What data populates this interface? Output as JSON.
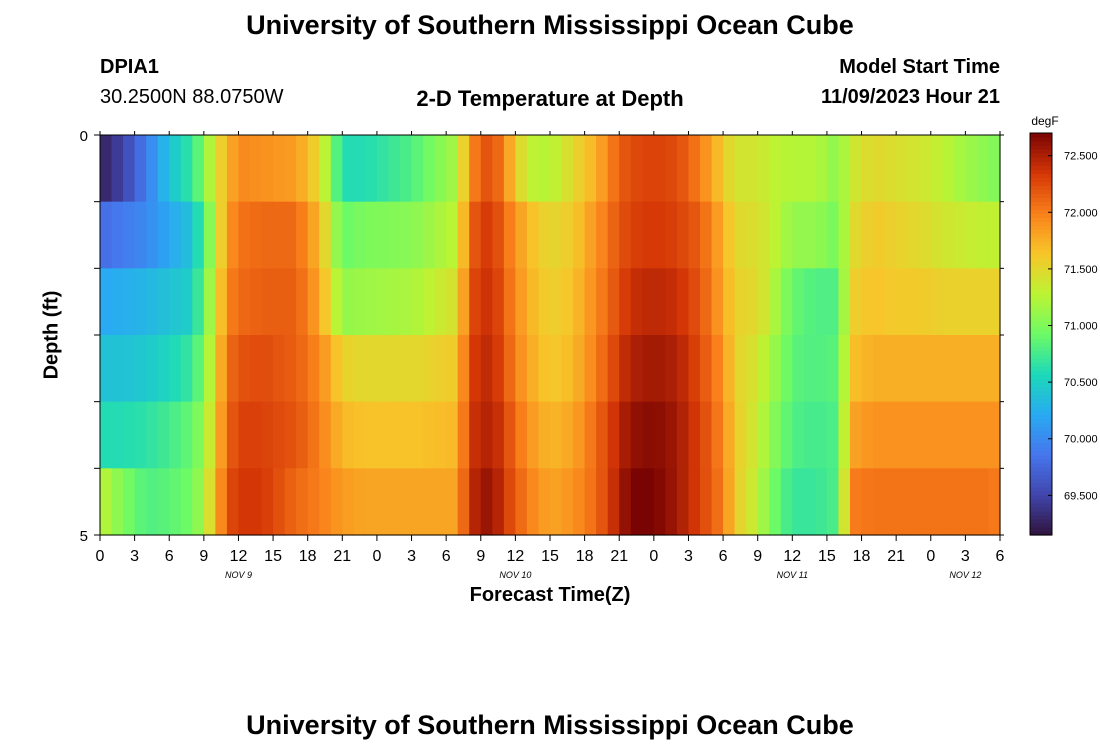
{
  "page": {
    "title": "University of Southern Mississippi Ocean Cube",
    "footer_title": "University of Southern Mississippi Ocean Cube"
  },
  "station": {
    "id": "DPIA1",
    "coords": "30.2500N  88.0750W"
  },
  "model": {
    "start_label": "Model Start Time",
    "start_time": "11/09/2023 Hour 21"
  },
  "chart_data": {
    "type": "heatmap",
    "title": "2-D Temperature at Depth",
    "xlabel": "Forecast Time(Z)",
    "ylabel": "Depth (ft)",
    "y_ticks": [
      "0",
      "5"
    ],
    "ylim": [
      0,
      5
    ],
    "x_tick_labels": [
      "0",
      "3",
      "6",
      "9",
      "12",
      "15",
      "18",
      "21",
      "0",
      "3",
      "6",
      "9",
      "12",
      "15",
      "18",
      "21",
      "0",
      "3",
      "6",
      "9",
      "12",
      "15",
      "18",
      "21",
      "0",
      "3",
      "6"
    ],
    "day_labels": [
      {
        "text": "NOV 9",
        "hour": 12
      },
      {
        "text": "NOV 10",
        "hour": 36
      },
      {
        "text": "NOV 11",
        "hour": 60
      },
      {
        "text": "NOV 12",
        "hour": 75
      }
    ],
    "xlim_hours": [
      0,
      78
    ],
    "depth_rows": 6,
    "colorbar": {
      "unit": "degF",
      "ticks": [
        "72.500",
        "72.000",
        "71.500",
        "71.000",
        "70.500",
        "70.000",
        "69.500"
      ],
      "range": [
        69.15,
        72.7
      ]
    },
    "grid": false,
    "legend": "right",
    "time_profile_hours": [
      0,
      2,
      4,
      6,
      8,
      9,
      10,
      11,
      12,
      14,
      17,
      19,
      21,
      23,
      27,
      31,
      32,
      33,
      34,
      35,
      37,
      39,
      41,
      43,
      45,
      46,
      48,
      50,
      52,
      54,
      55,
      57,
      58,
      60,
      62,
      64,
      65,
      67,
      69,
      71,
      73,
      75,
      77,
      78
    ],
    "temperature_degF": [
      [
        69.25,
        69.5,
        69.9,
        70.4,
        70.7,
        71.0,
        71.45,
        71.7,
        71.95,
        71.9,
        71.85,
        71.5,
        70.6,
        70.6,
        70.8,
        71.2,
        71.9,
        72.15,
        72.25,
        71.95,
        71.3,
        71.25,
        71.5,
        71.75,
        72.15,
        72.25,
        72.3,
        72.25,
        72.0,
        71.6,
        71.4,
        71.4,
        71.3,
        71.25,
        71.25,
        71.05,
        71.35,
        71.5,
        71.45,
        71.4,
        71.3,
        71.15,
        71.05,
        71.0
      ],
      [
        69.8,
        69.9,
        70.0,
        70.2,
        70.4,
        70.8,
        71.3,
        71.85,
        72.05,
        72.1,
        72.1,
        71.7,
        70.9,
        71.0,
        71.05,
        71.3,
        72.1,
        72.3,
        72.35,
        72.1,
        71.7,
        71.5,
        71.6,
        71.9,
        72.2,
        72.3,
        72.35,
        72.3,
        72.15,
        71.75,
        71.5,
        71.45,
        71.35,
        71.1,
        71.1,
        70.95,
        71.45,
        71.6,
        71.55,
        71.5,
        71.4,
        71.35,
        71.3,
        71.3
      ],
      [
        70.2,
        70.25,
        70.3,
        70.4,
        70.5,
        70.9,
        71.4,
        71.95,
        72.1,
        72.15,
        72.15,
        71.8,
        71.1,
        71.15,
        71.2,
        71.45,
        72.2,
        72.35,
        72.4,
        72.15,
        71.75,
        71.55,
        71.65,
        71.95,
        72.25,
        72.4,
        72.45,
        72.4,
        72.2,
        71.8,
        71.55,
        71.5,
        71.3,
        70.9,
        70.8,
        70.8,
        71.55,
        71.65,
        71.6,
        71.6,
        71.55,
        71.55,
        71.55,
        71.55
      ],
      [
        70.4,
        70.4,
        70.45,
        70.55,
        70.7,
        71.0,
        71.5,
        72.05,
        72.2,
        72.25,
        72.15,
        71.95,
        71.55,
        71.5,
        71.5,
        71.6,
        72.3,
        72.4,
        72.45,
        72.2,
        71.8,
        71.6,
        71.7,
        72.0,
        72.35,
        72.5,
        72.55,
        72.5,
        72.25,
        71.9,
        71.55,
        71.4,
        71.2,
        70.85,
        70.8,
        70.85,
        71.65,
        71.75,
        71.75,
        71.75,
        71.75,
        71.75,
        71.75,
        71.75
      ],
      [
        70.6,
        70.6,
        70.65,
        70.75,
        70.9,
        71.1,
        71.6,
        72.1,
        72.3,
        72.3,
        72.2,
        72.0,
        71.7,
        71.65,
        71.65,
        71.7,
        72.35,
        72.45,
        72.5,
        72.3,
        71.9,
        71.7,
        71.8,
        72.1,
        72.45,
        72.6,
        72.65,
        72.55,
        72.3,
        71.95,
        71.6,
        71.35,
        71.1,
        70.8,
        70.75,
        70.8,
        71.8,
        71.9,
        71.9,
        71.9,
        71.9,
        71.9,
        71.9,
        71.9
      ],
      [
        71.3,
        71.0,
        70.8,
        70.85,
        70.95,
        71.2,
        71.7,
        72.2,
        72.35,
        72.35,
        72.1,
        72.0,
        71.85,
        71.8,
        71.8,
        71.8,
        72.4,
        72.55,
        72.6,
        72.35,
        72.0,
        71.8,
        71.9,
        72.1,
        72.5,
        72.7,
        72.7,
        72.55,
        72.3,
        72.0,
        71.6,
        71.3,
        71.0,
        70.7,
        70.7,
        70.8,
        72.0,
        72.05,
        72.05,
        72.05,
        72.05,
        72.05,
        72.05,
        72.0
      ]
    ]
  }
}
